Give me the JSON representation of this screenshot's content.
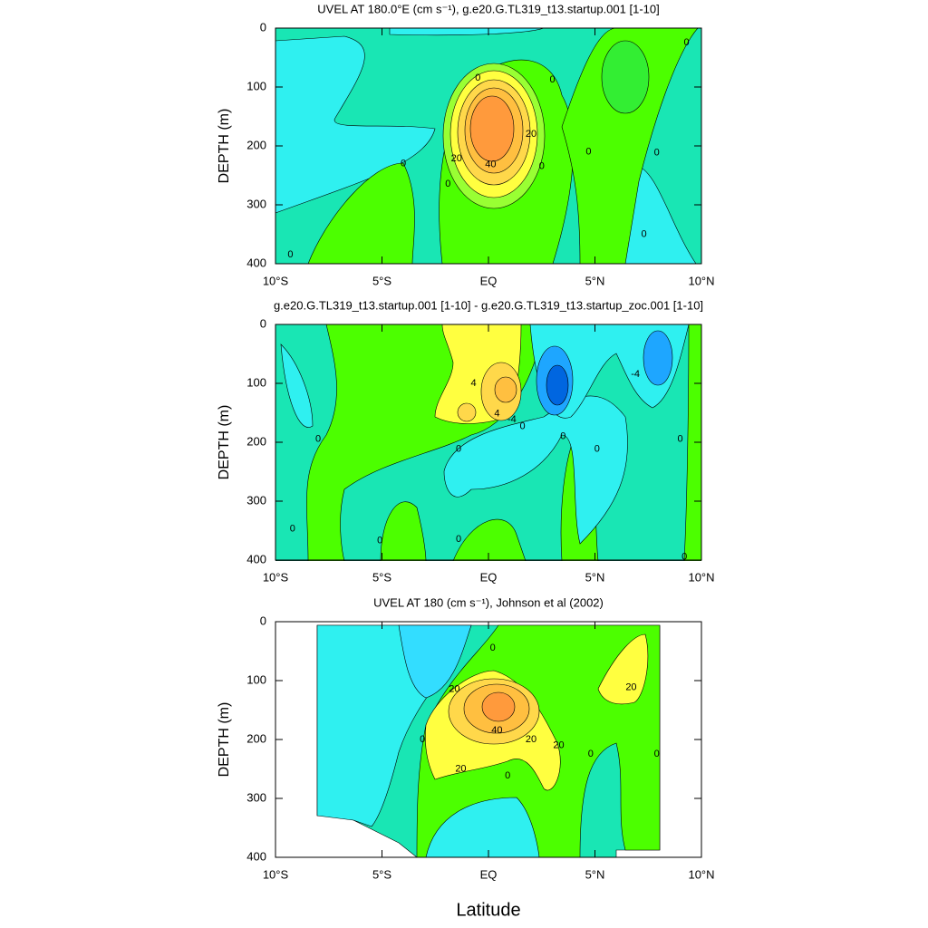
{
  "chart_data": [
    {
      "type": "contour",
      "title": "UVEL AT 180.0°E (cm s⁻¹), g.e20.G.TL319_t13.startup.001 [1-10]",
      "ylabel": "DEPTH (m)",
      "xlim": [
        -10,
        10
      ],
      "ylim": [
        0,
        400
      ],
      "y_reversed": true,
      "xticks": [
        {
          "value": -10,
          "label": "10°S"
        },
        {
          "value": -5,
          "label": "5°S"
        },
        {
          "value": 0,
          "label": "EQ"
        },
        {
          "value": 5,
          "label": "5°N"
        },
        {
          "value": 10,
          "label": "10°N"
        }
      ],
      "yticks": [
        0,
        100,
        200,
        300,
        400
      ],
      "contour_labels": [
        "0",
        "0",
        "0",
        "0",
        "20",
        "20",
        "40",
        "0",
        "0",
        "0",
        "0",
        "0",
        "0"
      ]
    },
    {
      "type": "contour",
      "title": "g.e20.G.TL319_t13.startup.001 [1-10] - g.e20.G.TL319_t13.startup_zoc.001 [1-10]",
      "ylabel": "DEPTH (m)",
      "xlim": [
        -10,
        10
      ],
      "ylim": [
        0,
        400
      ],
      "y_reversed": true,
      "xticks": [
        {
          "value": -10,
          "label": "10°S"
        },
        {
          "value": -5,
          "label": "5°S"
        },
        {
          "value": 0,
          "label": "EQ"
        },
        {
          "value": 5,
          "label": "5°N"
        },
        {
          "value": 10,
          "label": "10°N"
        }
      ],
      "yticks": [
        0,
        100,
        200,
        300,
        400
      ],
      "contour_labels": [
        "4",
        "4",
        "-4",
        "-4",
        "0",
        "0",
        "0",
        "0",
        "0",
        "0",
        "0",
        "0",
        "0",
        "0"
      ]
    },
    {
      "type": "contour",
      "title": "UVEL AT 180 (cm s⁻¹), Johnson et al (2002)",
      "ylabel": "DEPTH (m)",
      "xlabel": "Latitude",
      "xlim": [
        -10,
        10
      ],
      "ylim": [
        0,
        400
      ],
      "y_reversed": true,
      "xticks": [
        {
          "value": -10,
          "label": "10°S"
        },
        {
          "value": -5,
          "label": "5°S"
        },
        {
          "value": 0,
          "label": "EQ"
        },
        {
          "value": 5,
          "label": "5°N"
        },
        {
          "value": 10,
          "label": "10°N"
        }
      ],
      "yticks": [
        0,
        100,
        200,
        300,
        400
      ],
      "contour_labels": [
        "20",
        "20",
        "40",
        "20",
        "20",
        "20",
        "0",
        "0",
        "0",
        "0",
        "0"
      ]
    }
  ]
}
